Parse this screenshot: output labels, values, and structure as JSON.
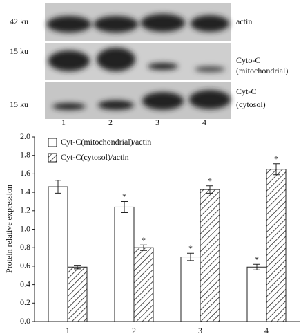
{
  "blot": {
    "markers": [
      "42 ku",
      "15 ku",
      "15 ku"
    ],
    "labels": [
      [
        "actin"
      ],
      [
        "Cyto-C",
        "(mitochondrial)"
      ],
      [
        "Cyt-C",
        "(cytosol)"
      ]
    ],
    "lanes": [
      "1",
      "2",
      "3",
      "4"
    ]
  },
  "chart_data": {
    "type": "bar",
    "ylabel": "Protein relative expression",
    "categories": [
      "1",
      "2",
      "3",
      "4"
    ],
    "series": [
      {
        "name": "Cyt-C(mitochondrial)/actin",
        "color": "#ffffff",
        "hatch": false,
        "values": [
          1.46,
          1.24,
          0.7,
          0.59
        ],
        "errors": [
          0.07,
          0.06,
          0.04,
          0.03
        ],
        "annotations": [
          null,
          "*",
          "*",
          "*"
        ]
      },
      {
        "name": "Cyt-C(cytosol)/actin",
        "color": "#ffffff",
        "hatch": true,
        "values": [
          0.59,
          0.8,
          1.43,
          1.65
        ],
        "errors": [
          0.02,
          0.03,
          0.04,
          0.06
        ],
        "annotations": [
          null,
          "*",
          "*",
          "*"
        ]
      }
    ],
    "ylim": [
      0,
      2.0
    ],
    "yticks": [
      {
        "value": 0,
        "label": "0.0"
      },
      0.2,
      0.4,
      0.6,
      0.8,
      {
        "value": 1,
        "label": "1.0"
      },
      1.2,
      1.4,
      1.6,
      1.8,
      {
        "value": 2,
        "label": "2.0"
      }
    ],
    "legend": "upper left"
  }
}
